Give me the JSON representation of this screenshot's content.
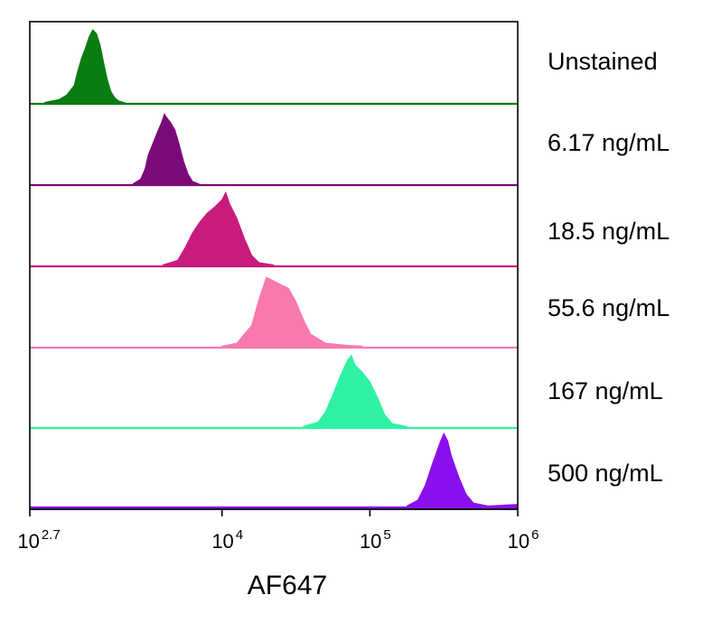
{
  "chart_data": {
    "type": "area",
    "title": "",
    "xlabel": "AF647",
    "ylabel": "",
    "x_scale": "log",
    "xlim": [
      501.19,
      1000000
    ],
    "x_ticks": [
      {
        "value": 501.19,
        "base": "10",
        "exp": "2.7"
      },
      {
        "value": 10000,
        "base": "10",
        "exp": "4"
      },
      {
        "value": 100000,
        "base": "10",
        "exp": "5"
      },
      {
        "value": 1000000,
        "base": "10",
        "exp": "6"
      }
    ],
    "grid": false,
    "legend": "none",
    "series": [
      {
        "name": "Unstained",
        "color": "#0a7d12",
        "points": [
          [
            631,
            0.02
          ],
          [
            794,
            0.06
          ],
          [
            891,
            0.12
          ],
          [
            1000,
            0.25
          ],
          [
            1059,
            0.45
          ],
          [
            1122,
            0.62
          ],
          [
            1189,
            0.75
          ],
          [
            1259,
            0.9
          ],
          [
            1334,
            1.0
          ],
          [
            1413,
            0.95
          ],
          [
            1496,
            0.8
          ],
          [
            1585,
            0.55
          ],
          [
            1679,
            0.32
          ],
          [
            1778,
            0.16
          ],
          [
            1884,
            0.08
          ],
          [
            1995,
            0.04
          ],
          [
            2239,
            0.01
          ]
        ]
      },
      {
        "name": "6.17 ng/mL",
        "color": "#7a0a7a",
        "points": [
          [
            2512,
            0.02
          ],
          [
            2818,
            0.08
          ],
          [
            3020,
            0.22
          ],
          [
            3162,
            0.4
          ],
          [
            3388,
            0.55
          ],
          [
            3631,
            0.7
          ],
          [
            3890,
            0.84
          ],
          [
            4073,
            0.96
          ],
          [
            4266,
            0.9
          ],
          [
            4467,
            0.85
          ],
          [
            4786,
            0.75
          ],
          [
            5129,
            0.55
          ],
          [
            5495,
            0.32
          ],
          [
            5888,
            0.15
          ],
          [
            6310,
            0.05
          ],
          [
            7079,
            0.01
          ]
        ]
      },
      {
        "name": "18.5 ng/mL",
        "color": "#c91a7e",
        "points": [
          [
            3981,
            0.02
          ],
          [
            5012,
            0.08
          ],
          [
            5623,
            0.25
          ],
          [
            6310,
            0.45
          ],
          [
            7079,
            0.6
          ],
          [
            7943,
            0.72
          ],
          [
            8913,
            0.8
          ],
          [
            10000,
            0.9
          ],
          [
            10593,
            1.0
          ],
          [
            11220,
            0.85
          ],
          [
            12589,
            0.65
          ],
          [
            14125,
            0.38
          ],
          [
            15849,
            0.15
          ],
          [
            17783,
            0.05
          ],
          [
            22387,
            0.02
          ]
        ]
      },
      {
        "name": "55.6 ng/mL",
        "color": "#f779ae",
        "points": [
          [
            10000,
            0.02
          ],
          [
            12589,
            0.06
          ],
          [
            15849,
            0.3
          ],
          [
            17783,
            0.65
          ],
          [
            19953,
            0.95
          ],
          [
            22387,
            0.9
          ],
          [
            25119,
            0.85
          ],
          [
            28184,
            0.8
          ],
          [
            31623,
            0.62
          ],
          [
            35481,
            0.38
          ],
          [
            39811,
            0.18
          ],
          [
            50119,
            0.06
          ],
          [
            70795,
            0.03
          ],
          [
            89125,
            0.02
          ]
        ]
      },
      {
        "name": "167 ng/mL",
        "color": "#2ef2a2",
        "points": [
          [
            35481,
            0.02
          ],
          [
            44668,
            0.08
          ],
          [
            50119,
            0.22
          ],
          [
            56234,
            0.45
          ],
          [
            63096,
            0.7
          ],
          [
            70795,
            0.92
          ],
          [
            74989,
            0.98
          ],
          [
            79433,
            0.85
          ],
          [
            89125,
            0.75
          ],
          [
            100000,
            0.62
          ],
          [
            112202,
            0.42
          ],
          [
            125893,
            0.18
          ],
          [
            141254,
            0.06
          ],
          [
            177828,
            0.02
          ]
        ]
      },
      {
        "name": "500 ng/mL",
        "color": "#8a10f0",
        "points": [
          [
            177828,
            0.02
          ],
          [
            211349,
            0.1
          ],
          [
            237137,
            0.3
          ],
          [
            266073,
            0.6
          ],
          [
            298538,
            0.88
          ],
          [
            316228,
            1.0
          ],
          [
            335982,
            0.9
          ],
          [
            354813,
            0.7
          ],
          [
            398107,
            0.42
          ],
          [
            446684,
            0.18
          ],
          [
            501187,
            0.06
          ],
          [
            630957,
            0.02
          ],
          [
            1000000,
            0.04
          ]
        ]
      }
    ]
  }
}
